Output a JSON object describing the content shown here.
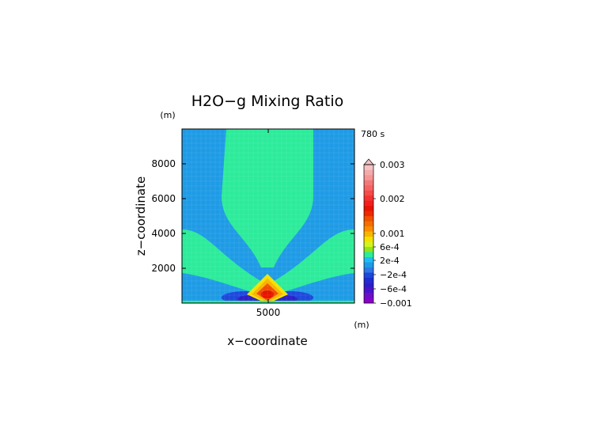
{
  "chart_data": {
    "type": "heatmap",
    "title": "H2O−g Mixing Ratio",
    "time_label": "780 s",
    "xlabel": "x−coordinate",
    "ylabel": "z−coordinate",
    "x_unit": "(m)",
    "y_unit": "(m)",
    "xlim": [
      0,
      10000
    ],
    "ylim": [
      0,
      10000
    ],
    "x_ticks": [
      5000
    ],
    "x_tick_labels": [
      "5000"
    ],
    "y_ticks": [
      2000,
      4000,
      6000,
      8000
    ],
    "y_tick_labels": [
      "2000",
      "4000",
      "6000",
      "8000"
    ],
    "grid": true,
    "colorbar": {
      "position": "right",
      "labels": [
        {
          "value": 0.003,
          "text": "0.003"
        },
        {
          "value": 0.002,
          "text": "0.002"
        },
        {
          "value": 0.001,
          "text": "0.001"
        },
        {
          "value": 0.0006,
          "text": "6e-4"
        },
        {
          "value": 0.0002,
          "text": "2e-4"
        },
        {
          "value": -0.0002,
          "text": "−2e-4"
        },
        {
          "value": -0.0006,
          "text": "−6e-4"
        },
        {
          "value": -0.001,
          "text": "−0.001"
        }
      ],
      "colors": [
        "#8b00c8",
        "#6a10c8",
        "#4b14c8",
        "#2e1ec8",
        "#1e2ed2",
        "#1e48dc",
        "#2c78e6",
        "#1e9be6",
        "#1ebef5",
        "#2ceb9a",
        "#8ee61e",
        "#d2f51e",
        "#f5e100",
        "#fab400",
        "#fa8c00",
        "#f56e00",
        "#f05000",
        "#f02800",
        "#e61400",
        "#f51e1e",
        "#f53232",
        "#f54b4b",
        "#f56464",
        "#f57878",
        "#f59696",
        "#f5aaaa",
        "#f5c3c3"
      ],
      "background_color": "#1e9be6",
      "plume_color": "#2ceb9a"
    }
  }
}
